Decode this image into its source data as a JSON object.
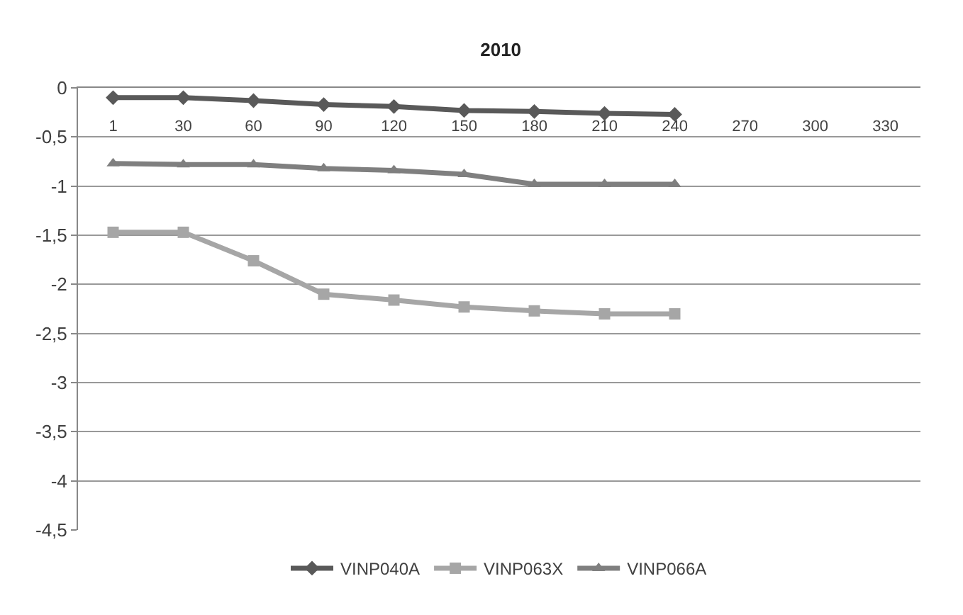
{
  "chart_data": {
    "type": "line",
    "title": "2010",
    "categories": [
      "1",
      "30",
      "60",
      "90",
      "120",
      "150",
      "180",
      "210",
      "240",
      "270",
      "300",
      "330"
    ],
    "series": [
      {
        "name": "VINP040A",
        "color": "#595959",
        "marker": "diamond",
        "values": [
          -0.1,
          -0.1,
          -0.13,
          -0.17,
          -0.19,
          -0.23,
          -0.24,
          -0.26,
          -0.27,
          null,
          null,
          null
        ]
      },
      {
        "name": "VINP063X",
        "color": "#a6a6a6",
        "marker": "square",
        "values": [
          -1.47,
          -1.47,
          -1.76,
          -2.1,
          -2.16,
          -2.23,
          -2.27,
          -2.3,
          -2.3,
          null,
          null,
          null
        ]
      },
      {
        "name": "VINP066A",
        "color": "#7f7f7f",
        "marker": "triangle",
        "values": [
          -0.77,
          -0.78,
          -0.78,
          -0.82,
          -0.84,
          -0.88,
          -0.98,
          -0.98,
          -0.98,
          null,
          null,
          null
        ]
      }
    ],
    "ylim": [
      -4.5,
      0
    ],
    "yticks": [
      0,
      {
        "value": -0.5,
        "label": "-0,5"
      },
      -1,
      {
        "value": -1.5,
        "label": "-1,5"
      },
      -2,
      {
        "value": -2.5,
        "label": "-2,5"
      },
      -3,
      {
        "value": -3.5,
        "label": "-3,5"
      },
      -4,
      {
        "value": -4.5,
        "label": "-4,5"
      }
    ],
    "grid": "y",
    "legend": "bottom",
    "line_style": "solid"
  }
}
